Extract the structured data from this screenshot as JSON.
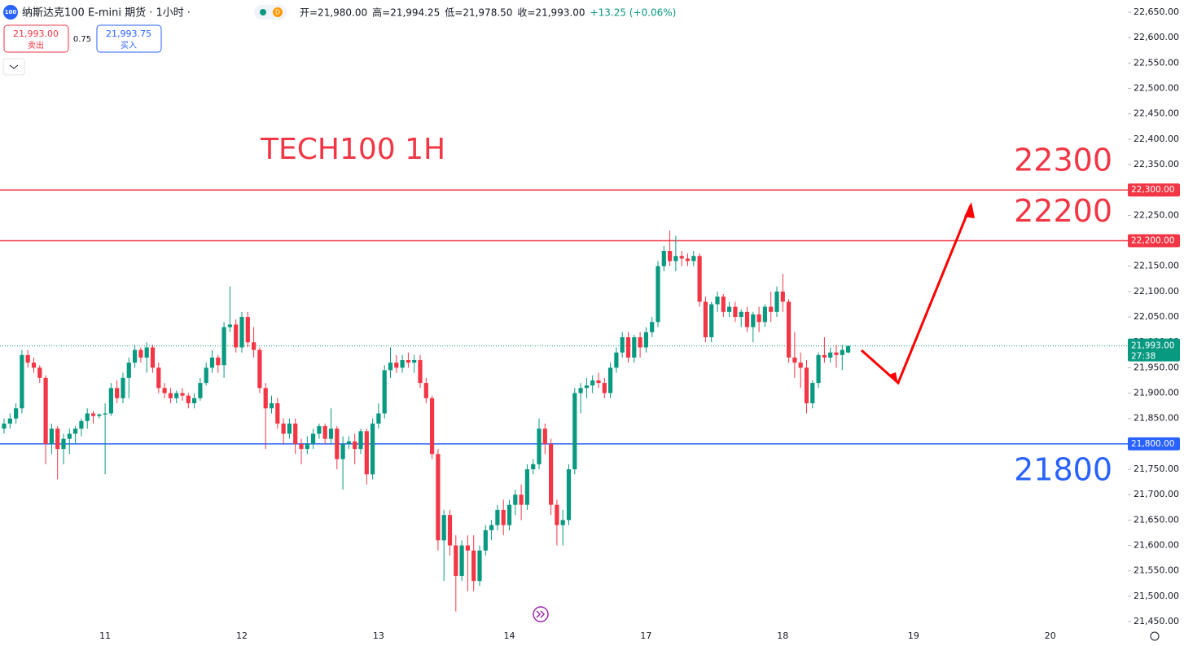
{
  "header": {
    "logo": "100",
    "title": "纳斯达克100 E-mini 期货 · 1小时 ·",
    "badge": "D",
    "ohlc": [
      "开=21,980.00",
      "高=21,994.25",
      "低=21,978.50",
      "收=21,993.00",
      "+13.25 (+0.06%)"
    ],
    "sell_price": "21,993.00",
    "sell_label": "卖出",
    "spread": "0.75",
    "buy_price": "21,993.75",
    "buy_label": "买入"
  },
  "chart_data": {
    "type": "candlestick",
    "title": "TECH100 1H",
    "up_color": "#089981",
    "down_color": "#f23645",
    "categories": [
      null,
      null,
      null,
      null,
      null,
      null,
      null,
      null,
      null,
      null,
      null,
      null,
      null,
      null,
      null,
      null,
      null,
      "11",
      null,
      null,
      null,
      null,
      null,
      null,
      null,
      null,
      null,
      null,
      null,
      null,
      null,
      null,
      null,
      null,
      null,
      null,
      null,
      null,
      null,
      null,
      "12",
      null,
      null,
      null,
      null,
      null,
      null,
      null,
      null,
      null,
      null,
      null,
      null,
      null,
      null,
      null,
      null,
      null,
      null,
      null,
      null,
      null,
      null,
      "13",
      null,
      null,
      null,
      null,
      null,
      null,
      null,
      null,
      null,
      null,
      null,
      null,
      null,
      null,
      null,
      null,
      null,
      null,
      null,
      null,
      null,
      "14",
      null,
      null,
      null,
      null,
      null,
      null,
      null,
      null,
      null,
      null,
      null,
      null,
      null,
      null,
      null,
      null,
      null,
      null,
      null,
      null,
      null,
      null,
      "17",
      null,
      null,
      null,
      null,
      null,
      null,
      null,
      null,
      null,
      null,
      null,
      null,
      null,
      null,
      null,
      null,
      null,
      null,
      null,
      null,
      null,
      null,
      "18",
      null,
      null,
      null,
      null,
      null,
      null,
      null,
      null,
      null,
      null,
      null,
      null,
      null,
      null,
      null,
      null,
      null,
      null,
      null,
      null,
      null,
      "19",
      null,
      null,
      null,
      null,
      null,
      null,
      null,
      null,
      null,
      null,
      null,
      null,
      null,
      null,
      null,
      null,
      null,
      null,
      null,
      null,
      null,
      null,
      "20",
      null,
      null,
      null,
      null,
      null,
      null,
      null,
      null,
      null,
      null,
      null,
      null
    ],
    "ohlc": [
      [
        21830,
        21850,
        21820,
        21840
      ],
      [
        21840,
        21860,
        21830,
        21850
      ],
      [
        21850,
        21880,
        21840,
        21870
      ],
      [
        21870,
        21985,
        21860,
        21975
      ],
      [
        21975,
        21985,
        21950,
        21960
      ],
      [
        21960,
        21970,
        21940,
        21950
      ],
      [
        21950,
        21955,
        21920,
        21930
      ],
      [
        21930,
        21935,
        21760,
        21800
      ],
      [
        21800,
        21840,
        21780,
        21830
      ],
      [
        21830,
        21835,
        21730,
        21790
      ],
      [
        21790,
        21820,
        21760,
        21810
      ],
      [
        21810,
        21830,
        21780,
        21820
      ],
      [
        21820,
        21835,
        21800,
        21830
      ],
      [
        21830,
        21850,
        21815,
        21845
      ],
      [
        21845,
        21870,
        21830,
        21860
      ],
      [
        21860,
        21865,
        21840,
        21855
      ],
      [
        21855,
        21860,
        21850,
        21858
      ],
      [
        21858,
        21880,
        21740,
        21860
      ],
      [
        21860,
        21920,
        21855,
        21910
      ],
      [
        21910,
        21925,
        21880,
        21890
      ],
      [
        21890,
        21940,
        21880,
        21930
      ],
      [
        21930,
        21970,
        21890,
        21960
      ],
      [
        21960,
        21995,
        21950,
        21985
      ],
      [
        21985,
        21990,
        21960,
        21970
      ],
      [
        21970,
        22000,
        21940,
        21990
      ],
      [
        21990,
        21995,
        21940,
        21950
      ],
      [
        21950,
        21960,
        21900,
        21910
      ],
      [
        21910,
        21920,
        21890,
        21900
      ],
      [
        21900,
        21910,
        21880,
        21890
      ],
      [
        21890,
        21905,
        21880,
        21900
      ],
      [
        21900,
        21910,
        21885,
        21895
      ],
      [
        21895,
        21900,
        21870,
        21880
      ],
      [
        21880,
        21900,
        21870,
        21890
      ],
      [
        21890,
        21930,
        21885,
        21920
      ],
      [
        21920,
        21960,
        21915,
        21950
      ],
      [
        21950,
        21985,
        21940,
        21970
      ],
      [
        21970,
        21975,
        21940,
        21955
      ],
      [
        21955,
        22040,
        21930,
        22030
      ],
      [
        22030,
        22110,
        22020,
        22035
      ],
      [
        22035,
        22045,
        21980,
        21990
      ],
      [
        21990,
        22060,
        21980,
        22050
      ],
      [
        22050,
        22060,
        21990,
        22000
      ],
      [
        22000,
        22030,
        21970,
        21985
      ],
      [
        21985,
        21990,
        21900,
        21910
      ],
      [
        21910,
        21920,
        21790,
        21870
      ],
      [
        21870,
        21895,
        21860,
        21880
      ],
      [
        21880,
        21890,
        21830,
        21840
      ],
      [
        21840,
        21850,
        21800,
        21820
      ],
      [
        21820,
        21850,
        21810,
        21840
      ],
      [
        21840,
        21850,
        21780,
        21800
      ],
      [
        21800,
        21810,
        21760,
        21790
      ],
      [
        21790,
        21815,
        21780,
        21800
      ],
      [
        21800,
        21830,
        21790,
        21820
      ],
      [
        21820,
        21840,
        21810,
        21835
      ],
      [
        21835,
        21840,
        21800,
        21810
      ],
      [
        21810,
        21870,
        21800,
        21830
      ],
      [
        21830,
        21835,
        21750,
        21770
      ],
      [
        21770,
        21815,
        21710,
        21800
      ],
      [
        21800,
        21815,
        21790,
        21805
      ],
      [
        21805,
        21820,
        21760,
        21790
      ],
      [
        21790,
        21830,
        21780,
        21825
      ],
      [
        21825,
        21830,
        21720,
        21740
      ],
      [
        21740,
        21850,
        21730,
        21840
      ],
      [
        21840,
        21880,
        21830,
        21860
      ],
      [
        21860,
        21955,
        21850,
        21945
      ],
      [
        21945,
        21990,
        21930,
        21960
      ],
      [
        21960,
        21975,
        21940,
        21950
      ],
      [
        21950,
        21975,
        21940,
        21965
      ],
      [
        21965,
        21980,
        21950,
        21960
      ],
      [
        21960,
        21975,
        21940,
        21965
      ],
      [
        21965,
        21975,
        21910,
        21920
      ],
      [
        21920,
        21930,
        21880,
        21890
      ],
      [
        21890,
        21895,
        21770,
        21780
      ],
      [
        21780,
        21790,
        21590,
        21610
      ],
      [
        21610,
        21670,
        21530,
        21660
      ],
      [
        21660,
        21670,
        21580,
        21600
      ],
      [
        21600,
        21620,
        21470,
        21540
      ],
      [
        21540,
        21610,
        21530,
        21600
      ],
      [
        21600,
        21620,
        21510,
        21590
      ],
      [
        21590,
        21620,
        21510,
        21530
      ],
      [
        21530,
        21600,
        21520,
        21590
      ],
      [
        21590,
        21640,
        21580,
        21630
      ],
      [
        21630,
        21650,
        21610,
        21640
      ],
      [
        21640,
        21680,
        21630,
        21670
      ],
      [
        21670,
        21690,
        21620,
        21640
      ],
      [
        21640,
        21690,
        21630,
        21680
      ],
      [
        21680,
        21710,
        21660,
        21700
      ],
      [
        21700,
        21720,
        21650,
        21680
      ],
      [
        21680,
        21760,
        21670,
        21750
      ],
      [
        21750,
        21770,
        21740,
        21760
      ],
      [
        21760,
        21850,
        21750,
        21830
      ],
      [
        21830,
        21840,
        21780,
        21800
      ],
      [
        21800,
        21810,
        21660,
        21680
      ],
      [
        21680,
        21690,
        21600,
        21640
      ],
      [
        21640,
        21670,
        21600,
        21650
      ],
      [
        21650,
        21760,
        21640,
        21750
      ],
      [
        21750,
        21910,
        21740,
        21900
      ],
      [
        21900,
        21920,
        21860,
        21910
      ],
      [
        21910,
        21930,
        21890,
        21915
      ],
      [
        21915,
        21935,
        21900,
        21925
      ],
      [
        21925,
        21940,
        21910,
        21920
      ],
      [
        21920,
        21930,
        21890,
        21900
      ],
      [
        21900,
        21960,
        21890,
        21950
      ],
      [
        21950,
        21990,
        21940,
        21980
      ],
      [
        21980,
        22020,
        21970,
        22010
      ],
      [
        22010,
        22020,
        21960,
        21970
      ],
      [
        21970,
        22015,
        21960,
        22010
      ],
      [
        22010,
        22020,
        21970,
        21990
      ],
      [
        21990,
        22030,
        21980,
        22020
      ],
      [
        22020,
        22050,
        22010,
        22040
      ],
      [
        22040,
        22160,
        22030,
        22150
      ],
      [
        22150,
        22190,
        22140,
        22180
      ],
      [
        22180,
        22220,
        22150,
        22160
      ],
      [
        22160,
        22210,
        22140,
        22170
      ],
      [
        22170,
        22180,
        22150,
        22165
      ],
      [
        22165,
        22175,
        22150,
        22160
      ],
      [
        22160,
        22180,
        22150,
        22170
      ],
      [
        22170,
        22175,
        22070,
        22080
      ],
      [
        22080,
        22090,
        22000,
        22010
      ],
      [
        22010,
        22080,
        22000,
        22075
      ],
      [
        22075,
        22100,
        22060,
        22090
      ],
      [
        22090,
        22095,
        22050,
        22060
      ],
      [
        22060,
        22080,
        22050,
        22070
      ],
      [
        22070,
        22080,
        22040,
        22050
      ],
      [
        22050,
        22065,
        22030,
        22060
      ],
      [
        22060,
        22070,
        22020,
        22030
      ],
      [
        22030,
        22060,
        22000,
        22055
      ],
      [
        22055,
        22070,
        22020,
        22040
      ],
      [
        22040,
        22075,
        22030,
        22070
      ],
      [
        22070,
        22100,
        22040,
        22060
      ],
      [
        22060,
        22110,
        22050,
        22100
      ],
      [
        22100,
        22135,
        22060,
        22080
      ],
      [
        22080,
        22085,
        21960,
        21970
      ],
      [
        21970,
        22020,
        21930,
        21960
      ],
      [
        21960,
        21980,
        21910,
        21950
      ],
      [
        21950,
        21965,
        21860,
        21880
      ],
      [
        21880,
        21925,
        21870,
        21920
      ],
      [
        21920,
        21980,
        21910,
        21975
      ],
      [
        21975,
        22010,
        21960,
        21970
      ],
      [
        21970,
        21990,
        21960,
        21980
      ],
      [
        21980,
        21995,
        21950,
        21975
      ],
      [
        21975,
        21995,
        21945,
        21985
      ],
      [
        21980,
        21994.25,
        21978.5,
        21993
      ],
      null,
      null,
      null,
      null,
      null,
      null,
      null,
      null,
      null,
      null,
      null,
      null,
      null,
      null,
      null,
      null,
      null,
      null,
      null,
      null,
      null,
      null,
      null,
      null,
      null,
      null,
      null,
      null,
      null,
      null,
      null,
      null,
      null,
      null,
      null,
      null,
      null,
      null,
      null,
      null,
      null,
      null,
      null,
      null,
      null,
      null
    ],
    "ylim": [
      21430,
      22675
    ],
    "yticks": [
      {
        "value": 21450,
        "label": "21,450.00"
      },
      {
        "value": 21500,
        "label": "21,500.00"
      },
      {
        "value": 21550,
        "label": "21,550.00"
      },
      {
        "value": 21600,
        "label": "21,600.00"
      },
      {
        "value": 21650,
        "label": "21,650.00"
      },
      {
        "value": 21700,
        "label": "21,700.00"
      },
      {
        "value": 21750,
        "label": "21,750.00"
      },
      {
        "value": 21800,
        "label": "21,800.00"
      },
      {
        "value": 21850,
        "label": "21,850.00"
      },
      {
        "value": 21900,
        "label": "21,900.00"
      },
      {
        "value": 21950,
        "label": "21,950.00"
      },
      {
        "value": 22000,
        "label": "22,000.00"
      },
      {
        "value": 22050,
        "label": "22,050.00"
      },
      {
        "value": 22100,
        "label": "22,100.00"
      },
      {
        "value": 22150,
        "label": "22,150.00"
      },
      {
        "value": 22200,
        "label": "22,200.00"
      },
      {
        "value": 22250,
        "label": "22,250.00"
      },
      {
        "value": 22300,
        "label": "22,300.00"
      },
      {
        "value": 22350,
        "label": "22,350.00"
      },
      {
        "value": 22400,
        "label": "22,400.00"
      },
      {
        "value": 22450,
        "label": "22,450.00"
      },
      {
        "value": 22500,
        "label": "22,500.00"
      },
      {
        "value": 22550,
        "label": "22,550.00"
      },
      {
        "value": 22600,
        "label": "22,600.00"
      },
      {
        "value": 22650,
        "label": "22,650.00"
      }
    ],
    "levels": [
      {
        "value": 22300,
        "label": "22,300.00",
        "note": "22300",
        "color": "#f23645"
      },
      {
        "value": 22200,
        "label": "22,200.00",
        "note": "22200",
        "color": "#f23645"
      },
      {
        "value": 21800,
        "label": "21,800.00",
        "note": "21800",
        "color": "#2962ff"
      }
    ],
    "last_price": {
      "value": 21993,
      "label": "21,993.00",
      "countdown": "27:38",
      "color": "#089981"
    }
  }
}
